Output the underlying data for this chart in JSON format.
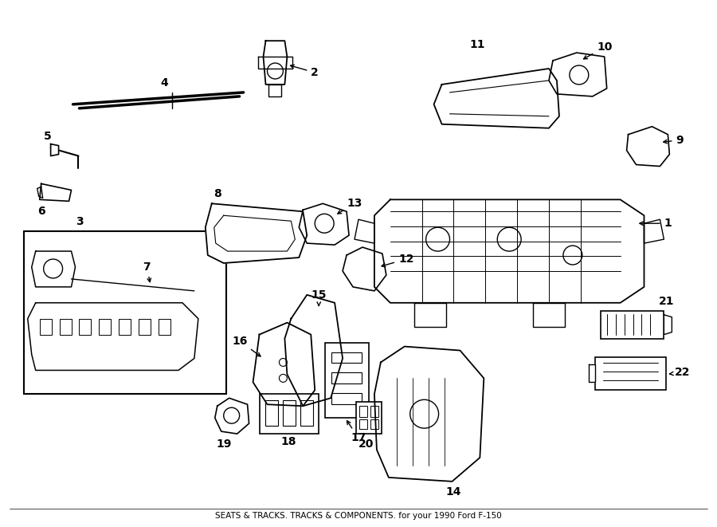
{
  "bg_color": "#ffffff",
  "line_color": "#000000",
  "title_text": "SEATS & TRACKS. TRACKS & COMPONENTS. for your 1990 Ford F-150",
  "figsize": [
    9.0,
    6.61
  ],
  "dpi": 100
}
